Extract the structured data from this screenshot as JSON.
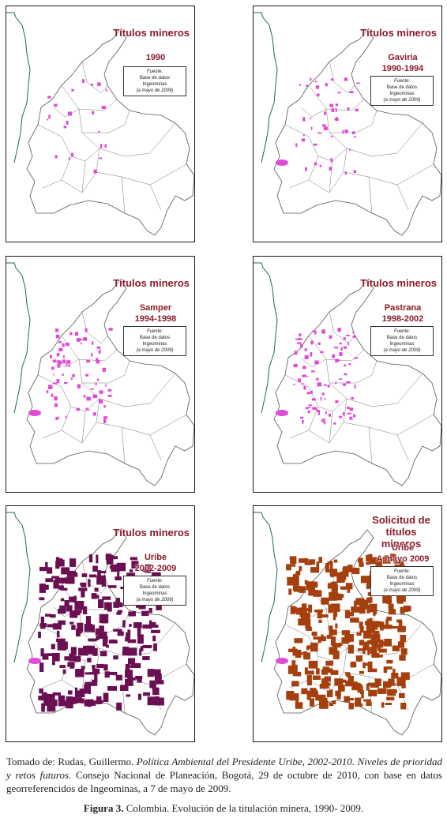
{
  "panels": [
    {
      "title": "Títulos mineros",
      "sub1": "1990",
      "sub2": "",
      "source": [
        "Fuente:",
        "Base de datos",
        "Ingeominas",
        "(a mayo de 2009)"
      ],
      "level": 1,
      "tone": "magenta"
    },
    {
      "title": "Títulos mineros",
      "sub1": "Gaviria",
      "sub2": "1990-1994",
      "source": [
        "Fuente:",
        "Base de datos",
        "Ingeominas",
        "(a mayo de 2009)"
      ],
      "level": 2,
      "tone": "magenta"
    },
    {
      "title": "Títulos mineros",
      "sub1": "Samper",
      "sub2": "1994-1998",
      "source": [
        "Fuente:",
        "Base de datos",
        "Ingeominas",
        "(a mayo de 2009)"
      ],
      "level": 3,
      "tone": "magenta"
    },
    {
      "title": "Títulos mineros",
      "sub1": "Pastrana",
      "sub2": "1998-2002",
      "source": [
        "Fuente:",
        "Base de datos",
        "Ingeominas",
        "(a mayo de 2009)"
      ],
      "level": 4,
      "tone": "magenta"
    },
    {
      "title": "Títulos mineros",
      "sub1": "Uribe",
      "sub2": "2002-2009",
      "source": [
        "Fuente:",
        "Base de datos",
        "Ingeominas",
        "(a mayo de 2009)"
      ],
      "level": 5,
      "tone": "purple"
    },
    {
      "title": "Solicitud de títulos mineros",
      "sub1": "Uribe",
      "sub2": "A mayo 2009",
      "source": [
        "Fuente:",
        "Base de datos",
        "Ingeominas",
        "(a mayo de 2009)"
      ],
      "level": 6,
      "tone": "brown"
    }
  ],
  "colors": {
    "magenta": "#e14ad6",
    "purple": "#6a0f52",
    "brown": "#a5400e",
    "title": "#8b1a2b",
    "coast": "#1a6b5a"
  },
  "caption": {
    "prefix": "Tomado de: Rudas, Guillermo. ",
    "italic": "Política Ambiental del Presidente Uribe, 2002-2010. Niveles de prioridad y retos futuros",
    "suffix": ". Consejo Nacional de Planeación, Bogotá, 29 de octubre de 2010, con base en datos georreferencidos de Ingeominas, a 7 de mayo de 2009."
  },
  "figure": {
    "label": "Figura 3.",
    "text": " Colombia. Evolución de la titulación minera, 1990- 2009."
  }
}
